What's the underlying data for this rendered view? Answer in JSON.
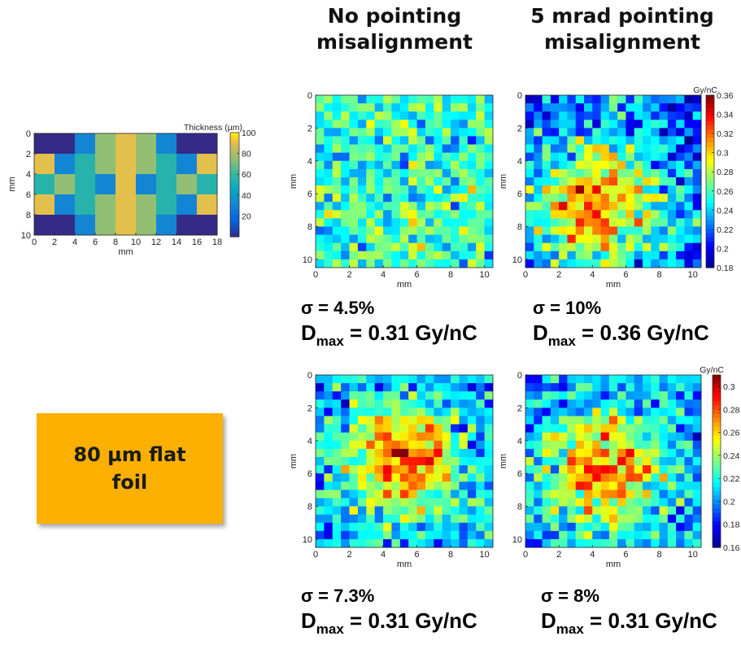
{
  "column_titles": [
    {
      "line1": "No pointing",
      "line2": "misalignment"
    },
    {
      "line1": "5 mrad pointing",
      "line2": "misalignment"
    }
  ],
  "foil_box": {
    "line1": "80 µm flat",
    "line2": "foil"
  },
  "stats": [
    {
      "sigma": "σ = 4.5%",
      "dmax_prefix": "D",
      "dmax_sub": "max",
      "dmax_value": " = 0.31 Gy/nC"
    },
    {
      "sigma": "σ = 10%",
      "dmax_prefix": "D",
      "dmax_sub": "max",
      "dmax_value": " = 0.36 Gy/nC"
    },
    {
      "sigma": "σ = 7.3%",
      "dmax_prefix": "D",
      "dmax_sub": "max",
      "dmax_value": " = 0.31 Gy/nC"
    },
    {
      "sigma": "σ = 8%",
      "dmax_prefix": "D",
      "dmax_sub": "max",
      "dmax_value": " = 0.31 Gy/nC"
    }
  ],
  "chart_data": [
    {
      "id": "thickness",
      "type": "heatmap",
      "colormap": "parula",
      "xlabel": "mm",
      "ylabel": "mm",
      "xlim": [
        0,
        18
      ],
      "ylim": [
        0,
        10
      ],
      "xticks": [
        0,
        2,
        4,
        6,
        8,
        10,
        12,
        14,
        16,
        18
      ],
      "yticks": [
        0,
        2,
        4,
        6,
        8,
        10
      ],
      "colorbar": {
        "label": "Thickness (µm)",
        "range": [
          0,
          100
        ],
        "ticks": [
          20,
          40,
          60,
          80,
          100
        ]
      },
      "values": [
        [
          0,
          0,
          30,
          75,
          90,
          75,
          30,
          0,
          0
        ],
        [
          90,
          30,
          55,
          75,
          90,
          75,
          55,
          30,
          90
        ],
        [
          55,
          75,
          55,
          30,
          90,
          30,
          55,
          75,
          55
        ],
        [
          90,
          30,
          55,
          75,
          90,
          75,
          55,
          30,
          90
        ],
        [
          0,
          0,
          30,
          75,
          90,
          75,
          30,
          0,
          0
        ]
      ]
    },
    {
      "id": "dose-top-left",
      "type": "heatmap",
      "colormap": "jet",
      "xlabel": "mm",
      "ylabel": "mm",
      "xlim": [
        0,
        10.5
      ],
      "ylim": [
        0,
        10.5
      ],
      "xticks": [
        0,
        2,
        4,
        6,
        8,
        10
      ],
      "yticks": [
        0,
        2,
        4,
        6,
        8,
        10
      ],
      "color_range": [
        0.18,
        0.36
      ],
      "grid_size": 21,
      "profile": {
        "base": 0.258,
        "peak": 0.0,
        "center": [
          10,
          10
        ],
        "width": 5,
        "noise": 0.018,
        "seed": 11
      }
    },
    {
      "id": "dose-top-right",
      "type": "heatmap",
      "colormap": "jet",
      "xlabel": "mm",
      "ylabel": "mm",
      "xlim": [
        0,
        10.5
      ],
      "ylim": [
        0,
        10.5
      ],
      "xticks": [
        0,
        2,
        4,
        6,
        8,
        10
      ],
      "yticks": [
        0,
        2,
        4,
        6,
        8,
        10
      ],
      "color_range": [
        0.18,
        0.36
      ],
      "colorbar": {
        "label": "Gy/nC",
        "range": [
          0.18,
          0.36
        ],
        "ticks": [
          0.18,
          0.2,
          0.22,
          0.24,
          0.26,
          0.28,
          0.3,
          0.32,
          0.34,
          0.36
        ]
      },
      "grid_size": 21,
      "profile": {
        "base": 0.218,
        "peak": 0.095,
        "center": [
          13,
          8
        ],
        "width": 5.5,
        "noise": 0.022,
        "seed": 23
      }
    },
    {
      "id": "dose-bottom-left",
      "type": "heatmap",
      "colormap": "jet",
      "xlabel": "mm",
      "ylabel": "mm",
      "xlim": [
        0,
        10.5
      ],
      "ylim": [
        0,
        10.5
      ],
      "xticks": [
        0,
        2,
        4,
        6,
        8,
        10
      ],
      "yticks": [
        0,
        2,
        4,
        6,
        8,
        10
      ],
      "color_range": [
        0.16,
        0.31
      ],
      "grid_size": 21,
      "profile": {
        "base": 0.205,
        "peak": 0.075,
        "center": [
          10,
          10
        ],
        "width": 4.5,
        "noise": 0.017,
        "seed": 37
      }
    },
    {
      "id": "dose-bottom-right",
      "type": "heatmap",
      "colormap": "jet",
      "xlabel": "mm",
      "ylabel": "mm",
      "xlim": [
        0,
        10.5
      ],
      "ylim": [
        0,
        10.5
      ],
      "xticks": [
        0,
        2,
        4,
        6,
        8,
        10
      ],
      "yticks": [
        0,
        2,
        4,
        6,
        8,
        10
      ],
      "color_range": [
        0.16,
        0.31
      ],
      "colorbar": {
        "label": "Gy/nC",
        "range": [
          0.16,
          0.31
        ],
        "ticks": [
          0.16,
          0.18,
          0.2,
          0.22,
          0.24,
          0.26,
          0.28,
          0.3
        ]
      },
      "grid_size": 21,
      "profile": {
        "base": 0.206,
        "peak": 0.07,
        "center": [
          11,
          9
        ],
        "width": 4.5,
        "noise": 0.017,
        "seed": 51
      }
    }
  ]
}
